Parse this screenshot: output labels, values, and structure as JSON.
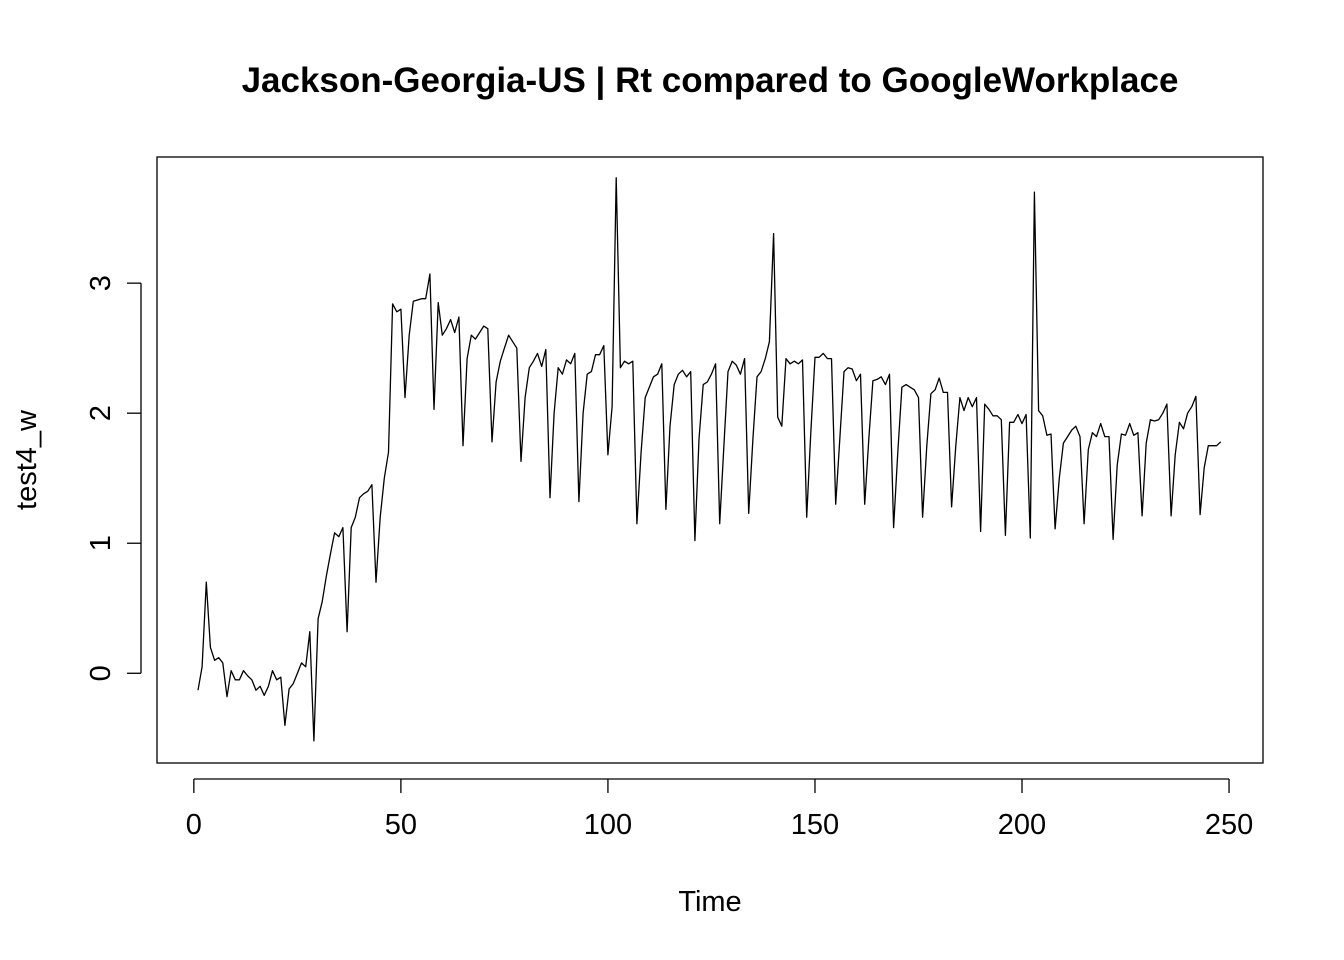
{
  "chart_data": {
    "type": "line",
    "title": "Jackson-Georgia-US | Rt compared to GoogleWorkplace",
    "xlabel": "Time",
    "ylabel": "test4_w",
    "xlim": [
      -8.9,
      258.2
    ],
    "ylim": [
      -0.69,
      3.97
    ],
    "xticks": [
      0,
      50,
      100,
      150,
      200,
      250
    ],
    "yticks": [
      0,
      1,
      2,
      3
    ],
    "line_color": "#000000",
    "series": [
      {
        "x": [
          1,
          2,
          3,
          4,
          5,
          6,
          7,
          8,
          9,
          10,
          11,
          12,
          13,
          14,
          15,
          16,
          17,
          18,
          19,
          20,
          21,
          22,
          23,
          24,
          25,
          26,
          27,
          28,
          29,
          30,
          31,
          32,
          33,
          34,
          35,
          36,
          37,
          38,
          39,
          40,
          41,
          42,
          43,
          44,
          45,
          46,
          47,
          48,
          49,
          50,
          51,
          52,
          53,
          54,
          55,
          56,
          57,
          58,
          59,
          60,
          61,
          62,
          63,
          64,
          65,
          66,
          67,
          68,
          69,
          70,
          71,
          72,
          73,
          74,
          75,
          76,
          77,
          78,
          79,
          80,
          81,
          82,
          83,
          84,
          85,
          86,
          87,
          88,
          89,
          90,
          91,
          92,
          93,
          94,
          95,
          96,
          97,
          98,
          99,
          100,
          101,
          102,
          103,
          104,
          105,
          106,
          107,
          108,
          109,
          110,
          111,
          112,
          113,
          114,
          115,
          116,
          117,
          118,
          119,
          120,
          121,
          122,
          123,
          124,
          125,
          126,
          127,
          128,
          129,
          130,
          131,
          132,
          133,
          134,
          135,
          136,
          137,
          138,
          139,
          140,
          141,
          142,
          143,
          144,
          145,
          146,
          147,
          148,
          149,
          150,
          151,
          152,
          153,
          154,
          155,
          156,
          157,
          158,
          159,
          160,
          161,
          162,
          163,
          164,
          165,
          166,
          167,
          168,
          169,
          170,
          171,
          172,
          173,
          174,
          175,
          176,
          177,
          178,
          179,
          180,
          181,
          182,
          183,
          184,
          185,
          186,
          187,
          188,
          189,
          190,
          191,
          192,
          193,
          194,
          195,
          196,
          197,
          198,
          199,
          200,
          201,
          202,
          203,
          204,
          205,
          206,
          207,
          208,
          209,
          210,
          211,
          212,
          213,
          214,
          215,
          216,
          217,
          218,
          219,
          220,
          221,
          222,
          223,
          224,
          225,
          226,
          227,
          228,
          229,
          230,
          231,
          232,
          233,
          234,
          235,
          236,
          237,
          238,
          239,
          240,
          241,
          242,
          243,
          244,
          245,
          246,
          247,
          248
        ],
        "values": [
          -0.13,
          0.05,
          0.7,
          0.2,
          0.1,
          0.12,
          0.08,
          -0.18,
          0.02,
          -0.05,
          -0.05,
          0.02,
          -0.02,
          -0.05,
          -0.13,
          -0.1,
          -0.17,
          -0.1,
          0.02,
          -0.05,
          -0.03,
          -0.4,
          -0.12,
          -0.08,
          0,
          0.08,
          0.05,
          0.32,
          -0.52,
          0.42,
          0.55,
          0.75,
          0.92,
          1.08,
          1.05,
          1.12,
          0.32,
          1.12,
          1.2,
          1.35,
          1.38,
          1.4,
          1.45,
          0.7,
          1.2,
          1.5,
          1.7,
          2.84,
          2.78,
          2.8,
          2.12,
          2.6,
          2.86,
          2.87,
          2.88,
          2.88,
          3.07,
          2.03,
          2.85,
          2.6,
          2.65,
          2.72,
          2.62,
          2.74,
          1.75,
          2.42,
          2.6,
          2.57,
          2.62,
          2.67,
          2.65,
          1.78,
          2.24,
          2.4,
          2.5,
          2.6,
          2.55,
          2.5,
          1.63,
          2.12,
          2.35,
          2.4,
          2.46,
          2.36,
          2.49,
          1.35,
          2,
          2.35,
          2.3,
          2.41,
          2.38,
          2.46,
          1.32,
          2,
          2.3,
          2.32,
          2.45,
          2.45,
          2.52,
          1.68,
          2.05,
          3.81,
          2.35,
          2.4,
          2.38,
          2.4,
          1.15,
          1.7,
          2.12,
          2.2,
          2.28,
          2.3,
          2.38,
          1.26,
          1.9,
          2.22,
          2.3,
          2.33,
          2.28,
          2.32,
          1.02,
          1.8,
          2.22,
          2.24,
          2.3,
          2.38,
          1.15,
          1.75,
          2.32,
          2.4,
          2.37,
          2.3,
          2.42,
          1.23,
          1.8,
          2.28,
          2.32,
          2.42,
          2.55,
          3.38,
          1.97,
          1.9,
          2.42,
          2.38,
          2.4,
          2.38,
          2.41,
          1.2,
          1.85,
          2.43,
          2.43,
          2.46,
          2.42,
          2.42,
          1.3,
          1.8,
          2.32,
          2.35,
          2.34,
          2.25,
          2.3,
          1.3,
          1.8,
          2.25,
          2.26,
          2.28,
          2.22,
          2.3,
          1.12,
          1.7,
          2.2,
          2.22,
          2.2,
          2.18,
          2.12,
          1.2,
          1.75,
          2.15,
          2.18,
          2.27,
          2.16,
          2.16,
          1.28,
          1.75,
          2.12,
          2.02,
          2.12,
          2.05,
          2.12,
          1.09,
          2.07,
          2.03,
          1.98,
          1.98,
          1.95,
          1.06,
          1.93,
          1.93,
          1.99,
          1.92,
          1.99,
          1.04,
          3.7,
          2.02,
          1.98,
          1.83,
          1.84,
          1.11,
          1.5,
          1.77,
          1.82,
          1.87,
          1.9,
          1.82,
          1.15,
          1.72,
          1.85,
          1.82,
          1.92,
          1.82,
          1.82,
          1.03,
          1.6,
          1.84,
          1.83,
          1.92,
          1.83,
          1.85,
          1.21,
          1.77,
          1.95,
          1.94,
          1.95,
          2,
          2.07,
          1.21,
          1.68,
          1.93,
          1.88,
          2,
          2.05,
          2.13,
          1.22,
          1.58,
          1.75,
          1.75,
          1.75,
          1.78
        ]
      }
    ]
  }
}
